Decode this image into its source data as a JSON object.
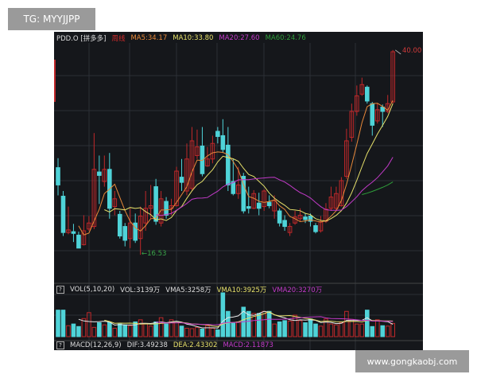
{
  "header": {
    "symbol": "PDD.O [拼多多]",
    "period": "周线",
    "ma5": "MA5:34.17",
    "ma10": "MA10:33.80",
    "ma20": "MA20:27.60",
    "ma60": "MA60:24.76"
  },
  "volume_header": {
    "help": "?",
    "indicator": "VOL(5,10,20)",
    "vol": "VOL:3139万",
    "vma5": "VMA5:3258万",
    "vma10": "VMA10:3925万",
    "vma20": "VMA20:3270万"
  },
  "macd_header": {
    "help": "?",
    "indicator": "MACD(12,26,9)",
    "dif": "DIF:3.49238",
    "dea": "DEA:2.43302",
    "macd": "MACD:2.11873"
  },
  "watermarks": {
    "top_left": "TG: MYYJJPP",
    "bottom_right": "www.gongkaobj.com"
  },
  "colors": {
    "up": "#c0282a",
    "down": "#4fd3d8",
    "ma5": "#e8893a",
    "ma10": "#e6e06a",
    "ma20": "#c23ac8",
    "ma60": "#2f9e3a",
    "background": "#15171b"
  },
  "chart_data": {
    "type": "candlestick",
    "period": "weekly",
    "price_labels": {
      "high": "40.00",
      "low": "16.53"
    },
    "ohlc": [
      [
        26.6,
        24.6,
        27.7,
        23.4
      ],
      [
        23.3,
        19.1,
        23.9,
        18.7
      ],
      [
        19.1,
        19.4,
        22.1,
        18.9
      ],
      [
        19.2,
        19.0,
        20.1,
        18.0
      ],
      [
        18.8,
        17.3,
        19.2,
        17.3
      ],
      [
        17.7,
        19.3,
        21.1,
        17.6
      ],
      [
        19.5,
        20.2,
        21.0,
        19.3
      ],
      [
        19.8,
        26.4,
        30.6,
        19.5
      ],
      [
        26.1,
        25.7,
        28.0,
        22.4
      ],
      [
        25.0,
        26.4,
        28.0,
        24.4
      ],
      [
        26.4,
        21.9,
        28.3,
        20.7
      ],
      [
        22.1,
        23.0,
        23.9,
        21.1
      ],
      [
        21.2,
        18.7,
        21.6,
        18.4
      ],
      [
        19.8,
        18.2,
        20.2,
        17.5
      ],
      [
        18.4,
        20.2,
        21.9,
        17.3
      ],
      [
        20.2,
        18.2,
        21.3,
        17.9
      ],
      [
        18.4,
        21.0,
        22.1,
        16.53
      ],
      [
        20.2,
        21.9,
        23.9,
        19.3
      ],
      [
        21.9,
        22.2,
        24.6,
        20.7
      ],
      [
        24.4,
        20.4,
        25.3,
        20.0
      ],
      [
        20.2,
        23.0,
        23.9,
        19.8
      ],
      [
        22.7,
        21.1,
        23.2,
        20.7
      ],
      [
        21.9,
        22.2,
        23.0,
        21.1
      ],
      [
        22.2,
        26.2,
        26.7,
        22.1
      ],
      [
        25.5,
        24.9,
        27.6,
        23.9
      ],
      [
        23.9,
        27.6,
        29.4,
        23.4
      ],
      [
        24.2,
        29.7,
        31.3,
        23.9
      ],
      [
        28.0,
        29.0,
        31.0,
        27.6
      ],
      [
        29.1,
        25.9,
        31.3,
        25.6
      ],
      [
        26.8,
        27.6,
        29.0,
        26.7
      ],
      [
        27.6,
        29.4,
        30.3,
        27.1
      ],
      [
        30.8,
        30.2,
        31.3,
        29.4
      ],
      [
        30.3,
        28.7,
        32.2,
        28.3
      ],
      [
        29.2,
        24.6,
        31.3,
        23.9
      ],
      [
        25.0,
        23.6,
        27.6,
        23.4
      ],
      [
        23.6,
        24.6,
        26.7,
        23.0
      ],
      [
        25.6,
        21.6,
        26.0,
        21.3
      ],
      [
        22.1,
        21.9,
        24.4,
        21.3
      ],
      [
        21.9,
        23.6,
        24.0,
        21.8
      ],
      [
        22.5,
        21.9,
        23.7,
        21.1
      ],
      [
        22.1,
        23.9,
        24.1,
        21.6
      ],
      [
        22.6,
        22.2,
        23.4,
        21.9
      ],
      [
        21.6,
        22.8,
        23.4,
        20.7
      ],
      [
        21.6,
        20.2,
        21.9,
        19.8
      ],
      [
        20.5,
        19.8,
        21.1,
        19.3
      ],
      [
        19.1,
        19.8,
        20.2,
        18.7
      ],
      [
        20.2,
        20.9,
        21.6,
        20.0
      ],
      [
        20.7,
        21.1,
        21.9,
        20.4
      ],
      [
        20.9,
        20.6,
        21.3,
        20.2
      ],
      [
        21.0,
        20.4,
        21.3,
        19.8
      ],
      [
        19.9,
        19.2,
        20.2,
        19.0
      ],
      [
        19.3,
        20.3,
        21.0,
        19.1
      ],
      [
        20.4,
        21.8,
        22.5,
        20.2
      ],
      [
        21.9,
        23.2,
        24.4,
        21.6
      ],
      [
        21.9,
        23.6,
        24.4,
        21.6
      ],
      [
        22.2,
        25.1,
        25.5,
        22.1
      ],
      [
        25.6,
        29.7,
        31.1,
        25.3
      ],
      [
        30.1,
        33.1,
        34.0,
        29.6
      ],
      [
        33.1,
        34.9,
        36.1,
        32.6
      ],
      [
        35.1,
        36.2,
        37.0,
        34.9
      ],
      [
        35.9,
        34.3,
        36.1,
        34.0
      ],
      [
        34.0,
        31.5,
        34.2,
        30.3
      ],
      [
        32.0,
        33.3,
        34.0,
        31.7
      ],
      [
        33.6,
        33.1,
        33.9,
        31.3
      ],
      [
        33.1,
        34.0,
        35.0,
        32.9
      ],
      [
        34.2,
        40.0,
        40.2,
        34.0
      ]
    ],
    "volume_unit": "万",
    "volume": [
      6300,
      6300,
      2600,
      3000,
      2400,
      4300,
      5700,
      2200,
      3300,
      2800,
      3400,
      2000,
      3000,
      2800,
      2600,
      3500,
      4000,
      3000,
      2500,
      3500,
      4500,
      3000,
      4000,
      3300,
      2500,
      2000,
      1900,
      2200,
      1800,
      2600,
      2000,
      1600,
      10400,
      6000,
      3200,
      3500,
      7000,
      6000,
      5500,
      5500,
      6000,
      6000,
      3000,
      3500,
      3800,
      3700,
      5100,
      3800,
      3300,
      4200,
      3000,
      2500,
      4200,
      3000,
      2800,
      3300,
      6000,
      4100,
      3000,
      3000,
      6300,
      2400,
      4000,
      2600,
      2500,
      3139
    ],
    "moving_averages": [
      5,
      10,
      20,
      60
    ],
    "grid": true
  }
}
